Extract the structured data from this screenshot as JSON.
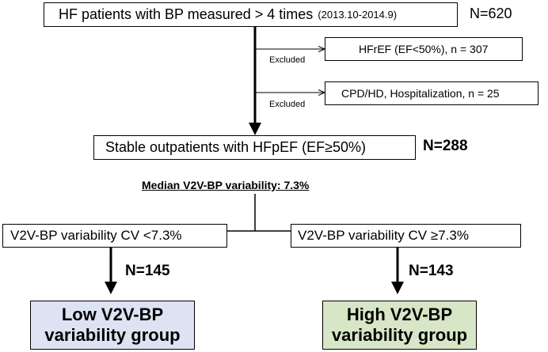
{
  "top": {
    "main": "HF patients with BP measured > 4 times",
    "period": "(2013.10-2014.9)",
    "n": "N=620"
  },
  "exclusions": [
    {
      "excluded_label": "Excluded",
      "text": "HFrEF (EF<50%), n = 307"
    },
    {
      "excluded_label": "Excluded",
      "text": "CPD/HD, Hospitalization, n = 25"
    }
  ],
  "stable": {
    "text": "Stable outpatients with HFpEF (EF≥50%)",
    "n": "N=288"
  },
  "median_label": "Median V2V-BP variability: 7.3%",
  "left_branch": {
    "criterion": "V2V-BP variability CV <7.3%",
    "n": "N=145",
    "group_line1": "Low V2V-BP",
    "group_line2": "variability group",
    "color": "#dde3f2"
  },
  "right_branch": {
    "criterion": "V2V-BP variability CV ≥7.3%",
    "n": "N=143",
    "group_line1": "High V2V-BP",
    "group_line2": "variability group",
    "color": "#d6e6c6"
  }
}
